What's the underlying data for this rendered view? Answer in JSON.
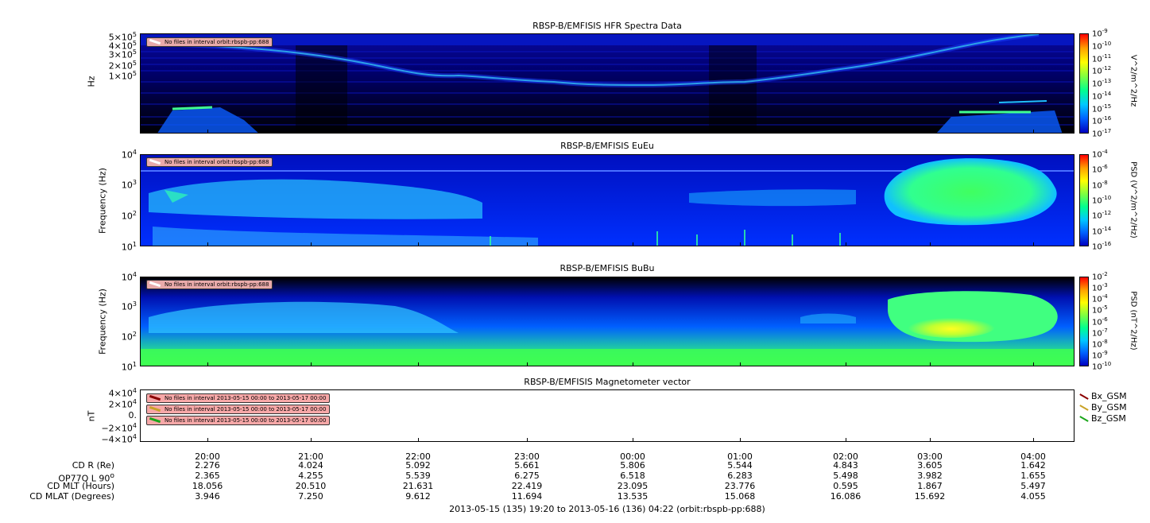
{
  "panels": [
    {
      "title": "RBSP-B/EMFISIS  HFR Spectra Data",
      "ylabel": "Hz",
      "yticks": [
        "5×10<sup>5</sup>",
        "4×10<sup>5</sup>",
        "3×10<sup>5</sup>",
        "2×10<sup>5</sup>",
        "1×10<sup>5</sup>"
      ],
      "cbar_label": "V^2/m^2/Hz",
      "cbar_ticks": [
        "10<sup>-9</sup>",
        "10<sup>-10</sup>",
        "10<sup>-11</sup>",
        "10<sup>-12</sup>",
        "10<sup>-13</sup>",
        "10<sup>-14</sup>",
        "10<sup>-15</sup>",
        "10<sup>-16</sup>",
        "10<sup>-17</sup>"
      ],
      "badge": "No files in interval orbit:rbspb-pp:688"
    },
    {
      "title": "RBSP-B/EMFISIS  EuEu",
      "ylabel": "Frequency (Hz)",
      "yticks": [
        "10<sup>4</sup>",
        "10<sup>3</sup>",
        "10<sup>2</sup>",
        "10<sup>1</sup>"
      ],
      "cbar_label": "PSD (V^2/m^2/Hz)",
      "cbar_ticks": [
        "10<sup>-4</sup>",
        "10<sup>-6</sup>",
        "10<sup>-8</sup>",
        "10<sup>-10</sup>",
        "10<sup>-12</sup>",
        "10<sup>-14</sup>",
        "10<sup>-16</sup>"
      ],
      "badge": "No files in interval orbit:rbspb-pp:688"
    },
    {
      "title": "RBSP-B/EMFISIS  BuBu",
      "ylabel": "Frequency (Hz)",
      "yticks": [
        "10<sup>4</sup>",
        "10<sup>3</sup>",
        "10<sup>2</sup>",
        "10<sup>1</sup>"
      ],
      "cbar_label": "PSD (nT^2/Hz)",
      "cbar_ticks": [
        "10<sup>-2</sup>",
        "10<sup>-3</sup>",
        "10<sup>-4</sup>",
        "10<sup>-5</sup>",
        "10<sup>-6</sup>",
        "10<sup>-7</sup>",
        "10<sup>-8</sup>",
        "10<sup>-9</sup>",
        "10<sup>-10</sup>"
      ],
      "badge": "No files in interval orbit:rbspb-pp:688"
    },
    {
      "title": "RBSP-B/EMFISIS  Magnetometer vector",
      "ylabel": "nT",
      "yticks": [
        "4×10<sup>4</sup>",
        "2×10<sup>4</sup>",
        "0.",
        "−2×10<sup>4</sup>",
        "−4×10<sup>4</sup>"
      ],
      "badges": [
        "No files in interval 2013-05-15 00:00 to 2013-05-17 00:00",
        "No files in interval 2013-05-15 00:00 to 2013-05-17 00:00",
        "No files in interval 2013-05-15 00:00 to 2013-05-17 00:00"
      ],
      "legend": [
        {
          "name": "Bx_GSM",
          "color": "#8b0000"
        },
        {
          "name": "By_GSM",
          "color": "#c9a227"
        },
        {
          "name": "Bz_GSM",
          "color": "#1aa61a"
        }
      ]
    }
  ],
  "chart_data": {
    "type": "heatmap",
    "x_ticks": [
      "20:00",
      "21:00",
      "22:00",
      "23:00",
      "00:00",
      "01:00",
      "02:00",
      "03:00",
      "04:00"
    ],
    "colors": {
      "low": "#0000c8",
      "mid": "#00ff80",
      "high": "#ff0000"
    }
  },
  "ephemeris": {
    "labels": [
      "CD R (Re)",
      "OP77Q L 90<sup>o</sup>",
      "CD MLT (Hours)",
      "CD MLAT (Degrees)"
    ],
    "rows": [
      [
        "2.276",
        "4.024",
        "5.092",
        "5.661",
        "5.806",
        "5.544",
        "4.843",
        "3.605",
        "1.642"
      ],
      [
        "2.365",
        "4.255",
        "5.539",
        "6.275",
        "6.518",
        "6.283",
        "5.498",
        "3.982",
        "1.655"
      ],
      [
        "18.056",
        "20.510",
        "21.631",
        "22.419",
        "23.095",
        "23.776",
        "0.595",
        "1.867",
        "5.497"
      ],
      [
        "3.946",
        "7.250",
        "9.612",
        "11.694",
        "13.535",
        "15.068",
        "16.086",
        "15.692",
        "4.055"
      ]
    ]
  },
  "footer": "2013-05-15 (135) 19:20 to 2013-05-16 (136) 04:22 (orbit:rbspb-pp:688)"
}
